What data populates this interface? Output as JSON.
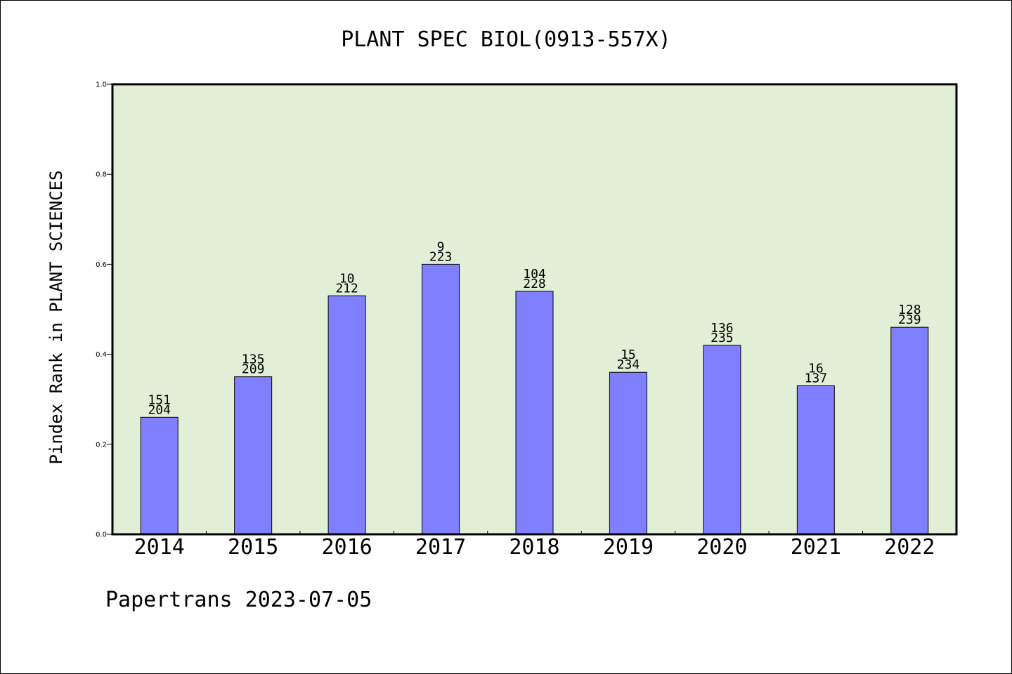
{
  "chart_data": {
    "type": "bar",
    "title": "PLANT SPEC BIOL(0913-557X)",
    "xlabel": "",
    "ylabel": "Pindex Rank in PLANT SCIENCES",
    "ylim": [
      0,
      1.0
    ],
    "yticks": [
      "0.0",
      "0.2",
      "0.4",
      "0.6",
      "0.8",
      "1.0"
    ],
    "categories": [
      "2014",
      "2015",
      "2016",
      "2017",
      "2018",
      "2019",
      "2020",
      "2021",
      "2022"
    ],
    "values": [
      0.26,
      0.35,
      0.53,
      0.6,
      0.54,
      0.36,
      0.42,
      0.33,
      0.46
    ],
    "label_top": [
      "151",
      "135",
      "10",
      "9",
      "104",
      "15",
      "136",
      "16",
      "128"
    ],
    "label_bottom": [
      "204",
      "209",
      "212",
      "223",
      "228",
      "234",
      "235",
      "137",
      "239"
    ],
    "grid": false,
    "colors": {
      "plot_background": "#e2efd7",
      "bar": "#8080ff",
      "bar_edge": "#000000"
    }
  },
  "footer": "Papertrans 2023-07-05"
}
